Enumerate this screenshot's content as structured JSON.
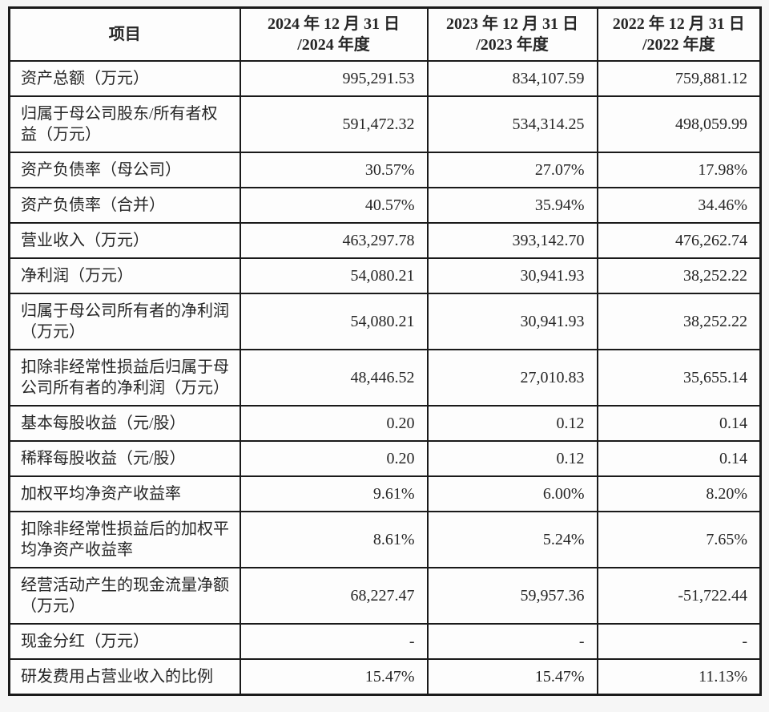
{
  "theme": {
    "page_background": "#f6f6f6",
    "cell_background": "#fdfdfd",
    "border_color": "#1a1a1a",
    "text_color": "#262626"
  },
  "table": {
    "header": {
      "item_label": "项目",
      "periods": [
        {
          "line1": "2024 年 12 月 31 日",
          "line2": "/2024 年度"
        },
        {
          "line1": "2023 年 12 月 31 日",
          "line2": "/2023 年度"
        },
        {
          "line1": "2022 年 12 月 31 日",
          "line2": "/2022 年度"
        }
      ]
    },
    "rows": [
      {
        "label": "资产总额（万元）",
        "values": [
          "995,291.53",
          "834,107.59",
          "759,881.12"
        ]
      },
      {
        "label": "归属于母公司股东/所有者权益（万元）",
        "values": [
          "591,472.32",
          "534,314.25",
          "498,059.99"
        ]
      },
      {
        "label": "资产负债率（母公司）",
        "values": [
          "30.57%",
          "27.07%",
          "17.98%"
        ]
      },
      {
        "label": "资产负债率（合并）",
        "values": [
          "40.57%",
          "35.94%",
          "34.46%"
        ]
      },
      {
        "label": "营业收入（万元）",
        "values": [
          "463,297.78",
          "393,142.70",
          "476,262.74"
        ]
      },
      {
        "label": "净利润（万元）",
        "values": [
          "54,080.21",
          "30,941.93",
          "38,252.22"
        ]
      },
      {
        "label": "归属于母公司所有者的净利润（万元）",
        "values": [
          "54,080.21",
          "30,941.93",
          "38,252.22"
        ]
      },
      {
        "label": "扣除非经常性损益后归属于母公司所有者的净利润（万元）",
        "values": [
          "48,446.52",
          "27,010.83",
          "35,655.14"
        ]
      },
      {
        "label": "基本每股收益（元/股）",
        "values": [
          "0.20",
          "0.12",
          "0.14"
        ]
      },
      {
        "label": "稀释每股收益（元/股）",
        "values": [
          "0.20",
          "0.12",
          "0.14"
        ]
      },
      {
        "label": "加权平均净资产收益率",
        "values": [
          "9.61%",
          "6.00%",
          "8.20%"
        ]
      },
      {
        "label": "扣除非经常性损益后的加权平均净资产收益率",
        "values": [
          "8.61%",
          "5.24%",
          "7.65%"
        ]
      },
      {
        "label": "经营活动产生的现金流量净额（万元）",
        "values": [
          "68,227.47",
          "59,957.36",
          "-51,722.44"
        ]
      },
      {
        "label": "现金分红（万元）",
        "values": [
          "-",
          "-",
          "-"
        ]
      },
      {
        "label": "研发费用占营业收入的比例",
        "values": [
          "15.47%",
          "15.47%",
          "11.13%"
        ]
      }
    ]
  }
}
